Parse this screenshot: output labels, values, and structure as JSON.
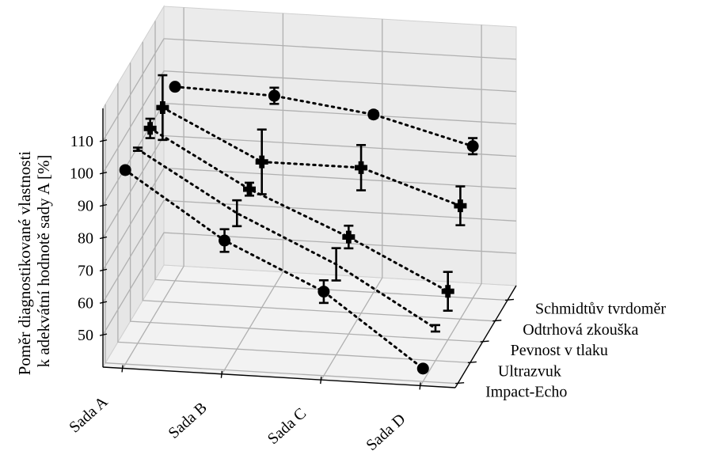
{
  "chart_data": {
    "type": "line",
    "projection": "3d",
    "x_label": "",
    "y_label": "",
    "z_label": "Poměr diagnostikované vlastnosti k adekvátní hodnotě sady A [%]",
    "z_label_lines": [
      "Poměr diagnostikované vlastnosti",
      "k adekvátní hodnotě sady A [%]"
    ],
    "categories": [
      "Sada A",
      "Sada B",
      "Sada C",
      "Sada D"
    ],
    "depth_categories": [
      "Impact-Echo",
      "Ultrazvuk",
      "Pevnost v tlaku",
      "Odtrhová zkouška",
      "Schmidtův tvrdoměr"
    ],
    "z_ticks": [
      50,
      60,
      70,
      80,
      90,
      100,
      110
    ],
    "zlim": [
      40,
      120
    ],
    "grid": true,
    "legend": "none",
    "series": [
      {
        "depth": "Impact-Echo",
        "marker": "circle",
        "values": [
          100,
          80,
          66,
          44
        ],
        "errors": [
          0.5,
          3.5,
          3.5,
          0.5
        ]
      },
      {
        "depth": "Ultrazvuk",
        "marker": "none",
        "values": [
          100,
          82,
          68,
          50
        ],
        "errors": [
          0.5,
          4,
          5,
          1
        ]
      },
      {
        "depth": "Pevnost v tlaku",
        "marker": "cross",
        "values": [
          100,
          83,
          70,
          55
        ],
        "errors": [
          3,
          2,
          3.5,
          6
        ]
      },
      {
        "depth": "Odtrhová zkouška",
        "marker": "cross",
        "values": [
          100,
          85,
          85,
          75
        ],
        "errors": [
          10,
          10,
          7,
          6
        ]
      },
      {
        "depth": "Schmidtův tvrdoměr",
        "marker": "circle",
        "values": [
          100,
          99,
          95,
          87
        ],
        "errors": [
          0.5,
          2.5,
          1,
          2.5
        ]
      }
    ]
  }
}
